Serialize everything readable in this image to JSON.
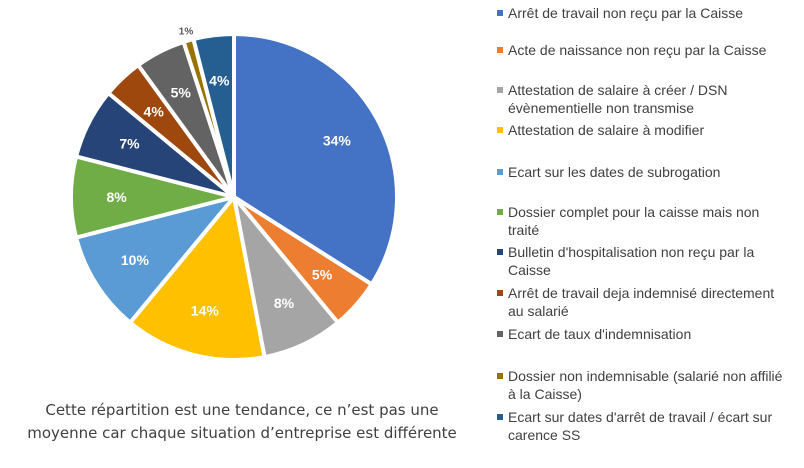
{
  "chart_data": {
    "type": "pie",
    "slices": [
      {
        "label": "Arrêt de travail non reçu par la Caisse",
        "value": 34,
        "display": "34%",
        "color": "#4472C4"
      },
      {
        "label": "Acte de naissance non reçu par la Caisse",
        "value": 5,
        "display": "5%",
        "color": "#ED7D31"
      },
      {
        "label": "Attestation de salaire à créer / DSN évènementielle non transmise",
        "value": 8,
        "display": "8%",
        "color": "#A5A5A5"
      },
      {
        "label": "Attestation de salaire à modifier",
        "value": 14,
        "display": "14%",
        "color": "#FFC000"
      },
      {
        "label": "Ecart sur les dates de subrogation",
        "value": 10,
        "display": "10%",
        "color": "#5B9BD5"
      },
      {
        "label": "Dossier complet pour la caisse mais non traité",
        "value": 8,
        "display": "8%",
        "color": "#70AD47"
      },
      {
        "label": "Bulletin d'hospitalisation non reçu par la Caisse",
        "value": 7,
        "display": "7%",
        "color": "#264478"
      },
      {
        "label": "Arrêt de travail deja indemnisé directement au salarié",
        "value": 4,
        "display": "4%",
        "color": "#9E480E"
      },
      {
        "label": "Ecart de taux d'indemnisation",
        "value": 5,
        "display": "5%",
        "color": "#636363"
      },
      {
        "label": "Dossier non indemnisable (salarié non affilié à la Caisse)",
        "value": 1,
        "display": "1%",
        "color": "#997300"
      },
      {
        "label": "Ecart sur dates d'arrêt de travail / écart sur carence SS",
        "value": 4,
        "display": "4%",
        "color": "#255E91"
      }
    ],
    "legend_position": "right"
  },
  "legend": [
    {
      "line1": "Arrêt de travail non reçu par la Caisse",
      "line2": ""
    },
    {
      "line1": "Acte de naissance non reçu par la Caisse",
      "line2": ""
    },
    {
      "line1": "Attestation de salaire à créer / DSN",
      "line2": "évènementielle non transmise"
    },
    {
      "line1": "Attestation de salaire à modifier",
      "line2": ""
    },
    {
      "line1": "Ecart sur les dates de subrogation",
      "line2": ""
    },
    {
      "line1": "Dossier complet pour la caisse mais non",
      "line2": "traité"
    },
    {
      "line1": "Bulletin d'hospitalisation non reçu par la",
      "line2": "Caisse"
    },
    {
      "line1": "Arrêt de travail deja indemnisé directement",
      "line2": "au salarié"
    },
    {
      "line1": "Ecart de taux d'indemnisation",
      "line2": ""
    },
    {
      "line1": "Dossier non indemnisable (salarié non affilié",
      "line2": "à la Caisse)"
    },
    {
      "line1": "Ecart sur dates d'arrêt de travail / écart sur",
      "line2": "carence SS"
    }
  ],
  "note": {
    "line1": "Cette répartition est une tendance, ce n’est pas une",
    "line2": "moyenne car chaque situation d’entreprise est différente"
  }
}
